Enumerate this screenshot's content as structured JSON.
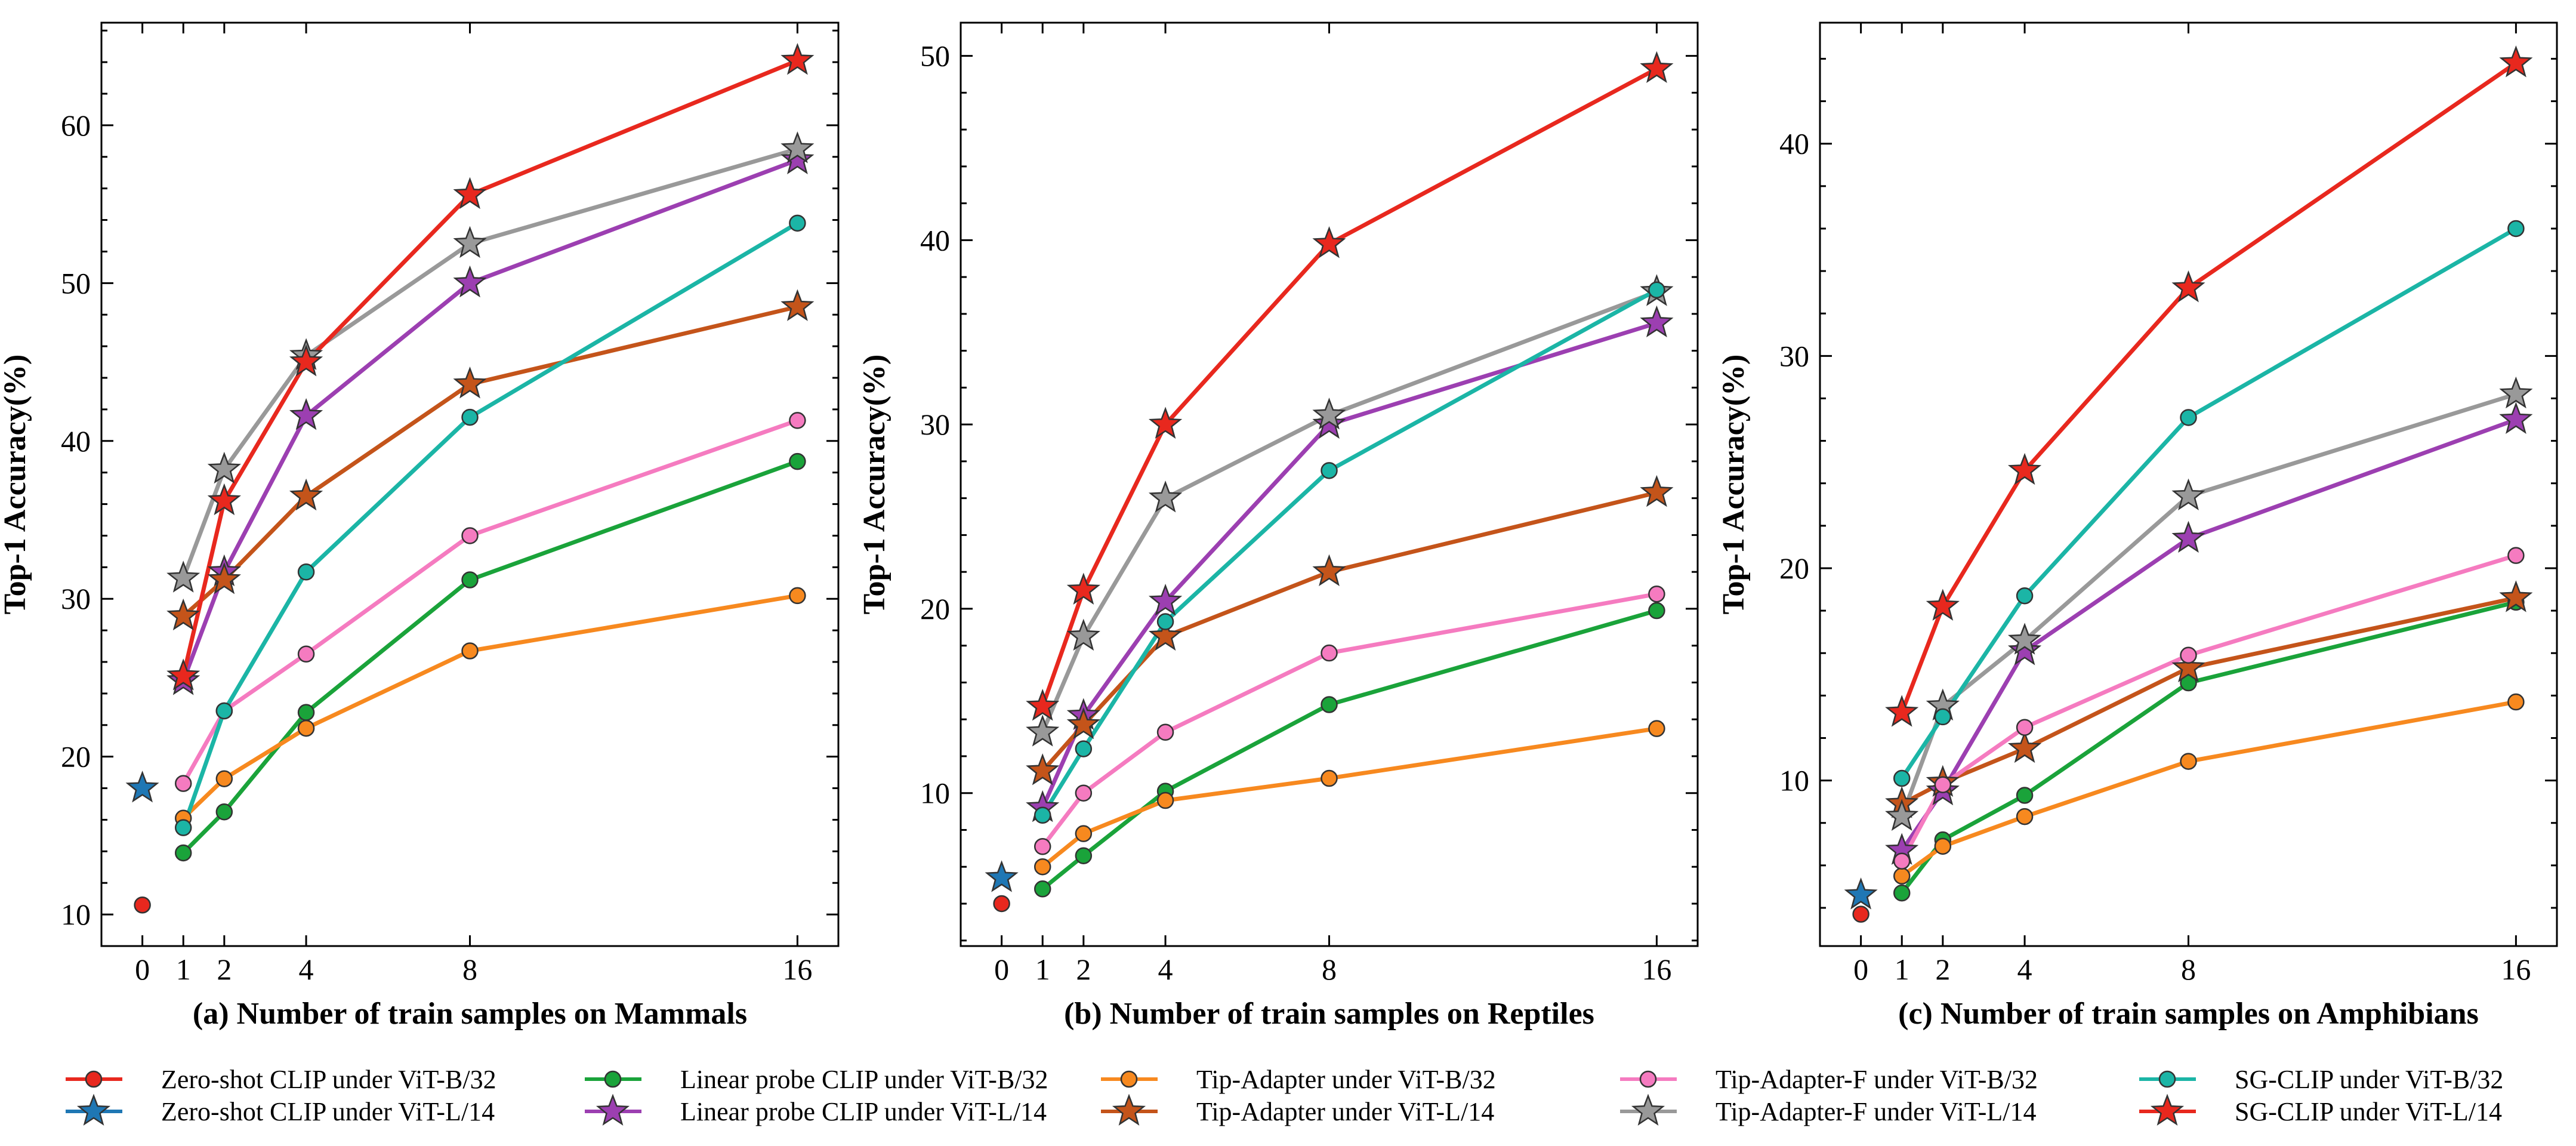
{
  "colors": {
    "red": "#e8281e",
    "blue": "#1f77b4",
    "green": "#1aa33a",
    "purple": "#9c3fb1",
    "orange": "#f7891f",
    "brown": "#c4541a",
    "pink": "#f57bc0",
    "gray": "#999999",
    "teal": "#1bb5a6"
  },
  "chart_data": [
    {
      "type": "line",
      "xlabel": "(a) Number of train samples on Mammals",
      "ylabel": "Top-1 Accuracy(%)",
      "x": [
        0,
        1,
        2,
        4,
        8,
        16
      ],
      "x_ticks": [
        0,
        1,
        2,
        4,
        8,
        16
      ],
      "xlim": [
        -1,
        17
      ],
      "ylim": [
        8,
        66.5
      ],
      "y_ticks": [
        10,
        20,
        30,
        40,
        50,
        60
      ],
      "series": [
        {
          "name": "Zero-shot CLIP under ViT-B/32",
          "x": [
            0
          ],
          "values": [
            10.6
          ]
        },
        {
          "name": "Zero-shot CLIP under ViT-L/14",
          "x": [
            0
          ],
          "values": [
            18.0
          ]
        },
        {
          "name": "Linear probe CLIP under ViT-B/32",
          "x": [
            1,
            2,
            4,
            8,
            16
          ],
          "values": [
            13.9,
            16.5,
            22.8,
            31.2,
            38.7
          ]
        },
        {
          "name": "Linear probe CLIP under ViT-L/14",
          "x": [
            1,
            2,
            4,
            8,
            16
          ],
          "values": [
            24.8,
            31.7,
            41.6,
            50.0,
            57.8
          ]
        },
        {
          "name": "Tip-Adapter under ViT-B/32",
          "x": [
            1,
            2,
            4,
            8,
            16
          ],
          "values": [
            16.1,
            18.6,
            21.8,
            26.7,
            30.2
          ]
        },
        {
          "name": "Tip-Adapter under ViT-L/14",
          "x": [
            1,
            2,
            4,
            8,
            16
          ],
          "values": [
            28.9,
            31.2,
            36.5,
            43.6,
            48.5
          ]
        },
        {
          "name": "Tip-Adapter-F under ViT-B/32",
          "x": [
            1,
            2,
            4,
            8,
            16
          ],
          "values": [
            18.3,
            22.9,
            26.5,
            34.0,
            41.3
          ]
        },
        {
          "name": "Tip-Adapter-F under ViT-L/14",
          "x": [
            1,
            2,
            4,
            8,
            16
          ],
          "values": [
            31.3,
            38.2,
            45.4,
            52.5,
            58.5
          ]
        },
        {
          "name": "SG-CLIP under ViT-B/32",
          "x": [
            1,
            2,
            4,
            8,
            16
          ],
          "values": [
            15.5,
            22.9,
            31.7,
            41.5,
            53.8
          ]
        },
        {
          "name": "SG-CLIP under ViT-L/14",
          "x": [
            1,
            2,
            4,
            8,
            16
          ],
          "values": [
            25.1,
            36.2,
            45.0,
            55.6,
            64.1
          ]
        }
      ]
    },
    {
      "type": "line",
      "xlabel": "(b) Number of train samples on Reptiles",
      "ylabel": "Top-1 Accuracy(%)",
      "x": [
        0,
        1,
        2,
        4,
        8,
        16
      ],
      "x_ticks": [
        0,
        1,
        2,
        4,
        8,
        16
      ],
      "xlim": [
        -1,
        17
      ],
      "ylim": [
        1.7,
        51.8
      ],
      "y_ticks": [
        10,
        20,
        30,
        40,
        50
      ],
      "series": [
        {
          "name": "Zero-shot CLIP under ViT-B/32",
          "x": [
            0
          ],
          "values": [
            4.0
          ]
        },
        {
          "name": "Zero-shot CLIP under ViT-L/14",
          "x": [
            0
          ],
          "values": [
            5.4
          ]
        },
        {
          "name": "Linear probe CLIP under ViT-B/32",
          "x": [
            1,
            2,
            4,
            8,
            16
          ],
          "values": [
            4.8,
            6.6,
            10.1,
            14.8,
            19.9
          ]
        },
        {
          "name": "Linear probe CLIP under ViT-L/14",
          "x": [
            1,
            2,
            4,
            8,
            16
          ],
          "values": [
            9.2,
            14.2,
            20.4,
            30.0,
            35.5
          ]
        },
        {
          "name": "Tip-Adapter under ViT-B/32",
          "x": [
            1,
            2,
            4,
            8,
            16
          ],
          "values": [
            6.0,
            7.8,
            9.6,
            10.8,
            13.5
          ]
        },
        {
          "name": "Tip-Adapter under ViT-L/14",
          "x": [
            1,
            2,
            4,
            8,
            16
          ],
          "values": [
            11.2,
            13.7,
            18.5,
            22.0,
            26.3
          ]
        },
        {
          "name": "Tip-Adapter-F under ViT-B/32",
          "x": [
            1,
            2,
            4,
            8,
            16
          ],
          "values": [
            7.1,
            10.0,
            13.3,
            17.6,
            20.8
          ]
        },
        {
          "name": "Tip-Adapter-F under ViT-L/14",
          "x": [
            1,
            2,
            4,
            8,
            16
          ],
          "values": [
            13.3,
            18.5,
            26.0,
            30.5,
            37.2
          ]
        },
        {
          "name": "SG-CLIP under ViT-B/32",
          "x": [
            1,
            2,
            4,
            8,
            16
          ],
          "values": [
            8.8,
            12.4,
            19.3,
            27.5,
            37.3
          ]
        },
        {
          "name": "SG-CLIP under ViT-L/14",
          "x": [
            1,
            2,
            4,
            8,
            16
          ],
          "values": [
            14.7,
            21.0,
            30.0,
            39.8,
            49.3
          ]
        }
      ]
    },
    {
      "type": "line",
      "xlabel": "(c) Number of train samples on Amphibians",
      "ylabel": "Top-1 Accuracy(%)",
      "x": [
        0,
        1,
        2,
        4,
        8,
        16
      ],
      "x_ticks": [
        0,
        1,
        2,
        4,
        8,
        16
      ],
      "xlim": [
        -1,
        17
      ],
      "ylim": [
        2.2,
        45.7
      ],
      "y_ticks": [
        10,
        20,
        30,
        40
      ],
      "series": [
        {
          "name": "Zero-shot CLIP under ViT-B/32",
          "x": [
            0
          ],
          "values": [
            3.7
          ]
        },
        {
          "name": "Zero-shot CLIP under ViT-L/14",
          "x": [
            0
          ],
          "values": [
            4.6
          ]
        },
        {
          "name": "Linear probe CLIP under ViT-B/32",
          "x": [
            1,
            2,
            4,
            8,
            16
          ],
          "values": [
            4.7,
            7.2,
            9.3,
            14.6,
            18.4
          ]
        },
        {
          "name": "Linear probe CLIP under ViT-L/14",
          "x": [
            1,
            2,
            4,
            8,
            16
          ],
          "values": [
            6.7,
            9.5,
            16.1,
            21.4,
            27.0
          ]
        },
        {
          "name": "Tip-Adapter under ViT-B/32",
          "x": [
            1,
            2,
            4,
            8,
            16
          ],
          "values": [
            5.5,
            6.9,
            8.3,
            10.9,
            13.7
          ]
        },
        {
          "name": "Tip-Adapter under ViT-L/14",
          "x": [
            1,
            2,
            4,
            8,
            16
          ],
          "values": [
            8.9,
            9.9,
            11.5,
            15.3,
            18.6
          ]
        },
        {
          "name": "Tip-Adapter-F under ViT-B/32",
          "x": [
            1,
            2,
            4,
            8,
            16
          ],
          "values": [
            6.2,
            9.8,
            12.5,
            15.9,
            20.6
          ]
        },
        {
          "name": "Tip-Adapter-F under ViT-L/14",
          "x": [
            1,
            2,
            4,
            8,
            16
          ],
          "values": [
            8.3,
            13.5,
            16.6,
            23.4,
            28.2
          ]
        },
        {
          "name": "SG-CLIP under ViT-B/32",
          "x": [
            1,
            2,
            4,
            8,
            16
          ],
          "values": [
            10.1,
            13.0,
            18.7,
            27.1,
            36.0
          ]
        },
        {
          "name": "SG-CLIP under ViT-L/14",
          "x": [
            1,
            2,
            4,
            8,
            16
          ],
          "values": [
            13.2,
            18.2,
            24.6,
            33.2,
            43.8
          ]
        }
      ]
    }
  ],
  "legend": {
    "placement": "bottom",
    "items": [
      {
        "label": "Zero-shot CLIP under ViT-B/32",
        "color": "red",
        "marker": "circle",
        "line": "red"
      },
      {
        "label": "Zero-shot CLIP under ViT-L/14",
        "color": "blue",
        "marker": "star",
        "line": "blue"
      },
      {
        "label": "Linear probe CLIP under ViT-B/32",
        "color": "green",
        "marker": "circle",
        "line": "green"
      },
      {
        "label": "Linear probe CLIP under ViT-L/14",
        "color": "purple",
        "marker": "star",
        "line": "purple"
      },
      {
        "label": "Tip-Adapter under ViT-B/32",
        "color": "orange",
        "marker": "circle",
        "line": "orange"
      },
      {
        "label": "Tip-Adapter under ViT-L/14",
        "color": "brown",
        "marker": "star",
        "line": "brown"
      },
      {
        "label": "Tip-Adapter-F under ViT-B/32",
        "color": "pink",
        "marker": "circle",
        "line": "pink"
      },
      {
        "label": "Tip-Adapter-F under ViT-L/14",
        "color": "gray",
        "marker": "star",
        "line": "gray"
      },
      {
        "label": "SG-CLIP under ViT-B/32",
        "color": "teal",
        "marker": "circle",
        "line": "teal"
      },
      {
        "label": "SG-CLIP under ViT-L/14",
        "color": "red",
        "marker": "star",
        "line": "red"
      }
    ]
  }
}
